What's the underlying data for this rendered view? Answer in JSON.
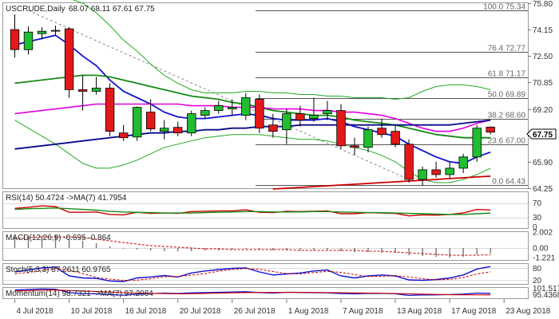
{
  "main_title": "USCRUDE,Daily",
  "ohlc_readout": "68.07 68.11 67.61 67.75",
  "last_price": "67.75",
  "colors": {
    "up": "#1fbd2f",
    "down": "#e31818",
    "ma_blue": "#1010cc",
    "ma_green": "#158a15",
    "ma_magenta": "#e000e0",
    "ma_navy": "#0a0a8a",
    "ma_red": "#cc0000",
    "bollinger": "#22aa22",
    "fib_line": "#555555",
    "trend_dash": "#888888"
  },
  "price_axis": {
    "ylim": [
      64.25,
      75.8
    ],
    "ticks": [
      "75.80",
      "74.15",
      "72.50",
      "70.85",
      "69.20",
      "67.55",
      "65.90",
      "64.25"
    ]
  },
  "fib_levels": [
    {
      "label": "100.0 75.34",
      "value": 75.34
    },
    {
      "label": "76.4 72.77",
      "value": 72.77
    },
    {
      "label": "61.8 71.17",
      "value": 71.17
    },
    {
      "label": "50.0 69.89",
      "value": 69.89
    },
    {
      "label": "38.2 68.60",
      "value": 68.6
    },
    {
      "label": "23.6 67.00",
      "value": 67.0
    },
    {
      "label": "0.0 64.43",
      "value": 64.43
    }
  ],
  "x_axis": {
    "date_labels": [
      {
        "label": "4 Jul 2018",
        "index": 0
      },
      {
        "label": "10 Jul 2018",
        "index": 4
      },
      {
        "label": "16 Jul 2018",
        "index": 8
      },
      {
        "label": "20 Jul 2018",
        "index": 12
      },
      {
        "label": "26 Jul 2018",
        "index": 16
      },
      {
        "label": "1 Aug 2018",
        "index": 20
      },
      {
        "label": "7 Aug 2018",
        "index": 24
      },
      {
        "label": "13 Aug 2018",
        "index": 28
      },
      {
        "label": "17 Aug 2018",
        "index": 32
      },
      {
        "label": "23 Aug 2018",
        "index": 36
      }
    ]
  },
  "chart_data": [
    {
      "type": "candlestick",
      "title": "USCRUDE,Daily",
      "ohlc": [
        {
          "o": 74.15,
          "h": 75.1,
          "l": 72.4,
          "c": 72.9
        },
        {
          "o": 72.9,
          "h": 74.35,
          "l": 72.6,
          "c": 74.0
        },
        {
          "o": 73.9,
          "h": 74.3,
          "l": 73.55,
          "c": 74.05
        },
        {
          "o": 74.05,
          "h": 74.4,
          "l": 73.8,
          "c": 74.1
        },
        {
          "o": 74.2,
          "h": 74.3,
          "l": 69.9,
          "c": 70.4
        },
        {
          "o": 70.4,
          "h": 71.3,
          "l": 69.1,
          "c": 70.3
        },
        {
          "o": 70.3,
          "h": 71.2,
          "l": 70.1,
          "c": 70.5
        },
        {
          "o": 70.5,
          "h": 70.8,
          "l": 67.5,
          "c": 67.8
        },
        {
          "o": 67.7,
          "h": 68.2,
          "l": 67.2,
          "c": 67.4
        },
        {
          "o": 67.45,
          "h": 69.35,
          "l": 67.2,
          "c": 69.3
        },
        {
          "o": 69.0,
          "h": 69.8,
          "l": 67.8,
          "c": 67.95
        },
        {
          "o": 67.8,
          "h": 68.5,
          "l": 67.3,
          "c": 68.0
        },
        {
          "o": 68.05,
          "h": 68.4,
          "l": 67.5,
          "c": 67.7
        },
        {
          "o": 67.7,
          "h": 69.1,
          "l": 67.5,
          "c": 68.9
        },
        {
          "o": 68.8,
          "h": 69.3,
          "l": 68.6,
          "c": 69.1
        },
        {
          "o": 69.1,
          "h": 69.7,
          "l": 68.9,
          "c": 69.4
        },
        {
          "o": 69.2,
          "h": 69.8,
          "l": 68.8,
          "c": 69.3
        },
        {
          "o": 68.8,
          "h": 70.2,
          "l": 68.5,
          "c": 69.9
        },
        {
          "o": 69.8,
          "h": 70.1,
          "l": 67.7,
          "c": 68.0
        },
        {
          "o": 68.2,
          "h": 68.9,
          "l": 67.4,
          "c": 67.8
        },
        {
          "o": 67.9,
          "h": 69.2,
          "l": 67.0,
          "c": 68.9
        },
        {
          "o": 68.9,
          "h": 69.4,
          "l": 68.1,
          "c": 68.5
        },
        {
          "o": 68.6,
          "h": 69.9,
          "l": 68.4,
          "c": 68.8
        },
        {
          "o": 68.9,
          "h": 69.7,
          "l": 68.5,
          "c": 69.1
        },
        {
          "o": 69.1,
          "h": 69.5,
          "l": 66.7,
          "c": 66.9
        },
        {
          "o": 66.9,
          "h": 67.4,
          "l": 66.3,
          "c": 66.8
        },
        {
          "o": 66.8,
          "h": 68.1,
          "l": 66.5,
          "c": 67.9
        },
        {
          "o": 68.0,
          "h": 68.6,
          "l": 67.4,
          "c": 67.6
        },
        {
          "o": 67.8,
          "h": 68.2,
          "l": 66.8,
          "c": 67.0
        },
        {
          "o": 67.0,
          "h": 67.3,
          "l": 64.6,
          "c": 64.8
        },
        {
          "o": 64.8,
          "h": 65.6,
          "l": 64.43,
          "c": 65.4
        },
        {
          "o": 65.4,
          "h": 65.9,
          "l": 64.9,
          "c": 65.1
        },
        {
          "o": 65.1,
          "h": 65.9,
          "l": 64.9,
          "c": 65.5
        },
        {
          "o": 65.5,
          "h": 66.4,
          "l": 65.2,
          "c": 66.2
        },
        {
          "o": 66.2,
          "h": 68.2,
          "l": 65.9,
          "c": 68.0
        },
        {
          "o": 68.07,
          "h": 68.11,
          "l": 67.61,
          "c": 67.75
        }
      ],
      "moving_averages": [
        {
          "color_key": "ma_blue",
          "values": [
            73.2,
            73.4,
            73.6,
            73.8,
            73.2,
            72.5,
            71.9,
            71.0,
            70.3,
            69.9,
            69.5,
            69.0,
            68.7,
            68.6,
            68.6,
            68.7,
            68.8,
            68.9,
            68.8,
            68.6,
            68.5,
            68.5,
            68.5,
            68.6,
            68.4,
            68.1,
            67.9,
            67.7,
            67.5,
            67.0,
            66.6,
            66.2,
            65.9,
            65.8,
            66.2,
            66.5
          ]
        },
        {
          "color_key": "ma_green",
          "values": [
            70.8,
            70.9,
            71.0,
            71.1,
            71.2,
            71.3,
            71.3,
            71.2,
            71.0,
            70.8,
            70.6,
            70.4,
            70.2,
            70.0,
            69.9,
            69.8,
            69.6,
            69.5,
            69.3,
            69.1,
            69.0,
            68.9,
            68.8,
            68.8,
            68.7,
            68.5,
            68.4,
            68.3,
            68.2,
            68.0,
            67.8,
            67.6,
            67.5,
            67.4,
            67.4,
            67.4
          ]
        },
        {
          "color_key": "ma_magenta",
          "values": [
            68.9,
            69.0,
            69.1,
            69.2,
            69.3,
            69.4,
            69.5,
            69.5,
            69.5,
            69.5,
            69.5,
            69.5,
            69.5,
            69.4,
            69.4,
            69.4,
            69.3,
            69.3,
            69.3,
            69.2,
            69.2,
            69.2,
            69.1,
            69.1,
            69.0,
            69.0,
            68.9,
            68.8,
            68.6,
            68.3,
            68.0,
            67.8,
            67.8,
            68.0,
            68.3,
            68.5
          ]
        },
        {
          "color_key": "ma_navy",
          "values": [
            66.7,
            66.8,
            66.9,
            67.0,
            67.1,
            67.2,
            67.3,
            67.4,
            67.5,
            67.6,
            67.7,
            67.7,
            67.8,
            67.8,
            67.9,
            67.9,
            68.0,
            68.0,
            68.1,
            68.1,
            68.1,
            68.2,
            68.2,
            68.2,
            68.2,
            68.2,
            68.2,
            68.2,
            68.2,
            68.2,
            68.2,
            68.2,
            68.2,
            68.3,
            68.4,
            68.5
          ]
        },
        {
          "color_key": "ma_red",
          "start_index": 19,
          "values": [
            64.2,
            64.25,
            64.3,
            64.35,
            64.4,
            64.45,
            64.5,
            64.55,
            64.6,
            64.65,
            64.7,
            64.75,
            64.8,
            64.85,
            64.9,
            64.95,
            65.0
          ]
        }
      ],
      "bollinger": {
        "upper": [
          76.5,
          76.4,
          76.3,
          76.2,
          76.1,
          75.8,
          75.2,
          74.4,
          73.5,
          72.8,
          72.0,
          71.3,
          70.8,
          70.4,
          70.2,
          70.2,
          70.2,
          70.3,
          70.3,
          70.2,
          70.2,
          70.1,
          70.1,
          70.0,
          70.0,
          69.9,
          69.9,
          69.9,
          69.8,
          69.9,
          70.3,
          70.6,
          70.7,
          70.7,
          70.6,
          70.4
        ],
        "lower": [
          68.5,
          68.0,
          67.5,
          67.0,
          66.4,
          65.8,
          65.5,
          65.5,
          65.7,
          66.0,
          66.4,
          66.8,
          67.0,
          67.2,
          67.4,
          67.5,
          67.6,
          67.6,
          67.6,
          67.5,
          67.4,
          67.3,
          67.3,
          67.2,
          67.0,
          66.8,
          66.6,
          66.3,
          65.9,
          65.3,
          64.8,
          64.6,
          64.6,
          64.8,
          65.1,
          65.5
        ]
      },
      "trendline": {
        "from": {
          "index": 1,
          "value": 75.34
        },
        "to": {
          "index": 29,
          "value": 64.8
        }
      }
    },
    {
      "type": "line",
      "title": "RSI(14) 50.4724 ->MA(7) 41.7954",
      "ylim": [
        0,
        100
      ],
      "levels": [
        30,
        70
      ],
      "ticks": [
        "70",
        "30",
        "0"
      ],
      "series": [
        {
          "color_key": "ma_red",
          "values": [
            55,
            58,
            62,
            60,
            44,
            44,
            45,
            38,
            37,
            44,
            41,
            42,
            41,
            46,
            47,
            48,
            48,
            51,
            44,
            43,
            47,
            46,
            47,
            48,
            40,
            40,
            43,
            42,
            41,
            34,
            37,
            36,
            38,
            42,
            52,
            50.4724
          ]
        },
        {
          "color_key": "ma_green",
          "values": [
            52,
            54,
            55,
            56,
            54,
            52,
            50,
            47,
            45,
            44,
            43,
            42,
            42,
            42,
            43,
            44,
            45,
            46,
            46,
            45,
            45,
            45,
            46,
            46,
            45,
            44,
            43,
            43,
            42,
            41,
            40,
            39,
            38,
            38,
            40,
            41.7954
          ]
        }
      ]
    },
    {
      "type": "bar",
      "title": "MACD(12,26,9) -0.695 -0.864",
      "ylim": [
        -1.5,
        2.002
      ],
      "ticks": [
        "2.002",
        "0.00",
        "-1.221"
      ],
      "bars": [
        1.4,
        1.5,
        1.6,
        1.6,
        1.2,
        0.9,
        0.6,
        0.2,
        -0.1,
        -0.2,
        -0.3,
        -0.4,
        -0.4,
        -0.4,
        -0.3,
        -0.3,
        -0.2,
        -0.1,
        -0.2,
        -0.3,
        -0.3,
        -0.3,
        -0.3,
        -0.2,
        -0.4,
        -0.5,
        -0.5,
        -0.6,
        -0.6,
        -0.9,
        -1.0,
        -1.1,
        -1.2,
        -1.1,
        -0.8,
        -0.695
      ],
      "signal": [
        1.2,
        1.3,
        1.4,
        1.4,
        1.4,
        1.3,
        1.1,
        0.9,
        0.7,
        0.5,
        0.3,
        0.2,
        0.1,
        0.0,
        -0.1,
        -0.1,
        -0.2,
        -0.2,
        -0.2,
        -0.2,
        -0.2,
        -0.3,
        -0.3,
        -0.3,
        -0.3,
        -0.3,
        -0.4,
        -0.4,
        -0.5,
        -0.6,
        -0.7,
        -0.8,
        -0.9,
        -0.9,
        -0.9,
        -0.864
      ]
    },
    {
      "type": "line",
      "title": "Stoch(5,3,3) 87.2611 60.9765",
      "ylim": [
        0,
        100
      ],
      "ticks": [
        "80",
        "20"
      ],
      "series": [
        {
          "color_key": "ma_blue",
          "values": [
            60,
            70,
            80,
            85,
            40,
            30,
            28,
            15,
            12,
            30,
            35,
            42,
            35,
            55,
            65,
            72,
            78,
            80,
            60,
            45,
            50,
            55,
            65,
            70,
            40,
            30,
            40,
            45,
            40,
            20,
            18,
            22,
            30,
            45,
            75,
            87.2611
          ]
        },
        {
          "color_key": "ma_red",
          "values": [
            50,
            58,
            68,
            78,
            68,
            52,
            33,
            24,
            18,
            19,
            26,
            36,
            37,
            44,
            52,
            64,
            72,
            77,
            73,
            62,
            52,
            50,
            57,
            63,
            58,
            47,
            37,
            38,
            42,
            35,
            26,
            20,
            23,
            32,
            50,
            60.9765
          ]
        }
      ]
    },
    {
      "type": "line",
      "title": "Momentum(14) 98.7321 ->MA(7) 97.2084",
      "ylim": [
        94,
        104
      ],
      "ticks": [
        "101.5179",
        "95.4368"
      ],
      "series": [
        {
          "color_key": "ma_blue",
          "values": [
            102,
            102.5,
            103,
            102.8,
            99.5,
            98.5,
            98.2,
            97.5,
            97,
            98,
            98.5,
            99,
            98.6,
            99.3,
            99.5,
            99.8,
            100,
            100.3,
            99.5,
            99,
            99.8,
            99.6,
            99.4,
            99.2,
            98.5,
            98.2,
            98.8,
            98.6,
            98.3,
            96.8,
            97.2,
            97.3,
            97.5,
            98,
            99,
            98.7321
          ]
        },
        {
          "color_key": "ma_red",
          "values": [
            101,
            101.5,
            101.8,
            102,
            101.5,
            101,
            100.5,
            100,
            99.4,
            99,
            98.6,
            98.5,
            98.3,
            98.4,
            98.6,
            98.9,
            99.2,
            99.5,
            99.6,
            99.6,
            99.7,
            99.7,
            99.6,
            99.5,
            99.4,
            99.2,
            99,
            98.8,
            98.6,
            98.3,
            98,
            97.7,
            97.4,
            97.3,
            97.3,
            97.2084
          ]
        }
      ]
    }
  ]
}
